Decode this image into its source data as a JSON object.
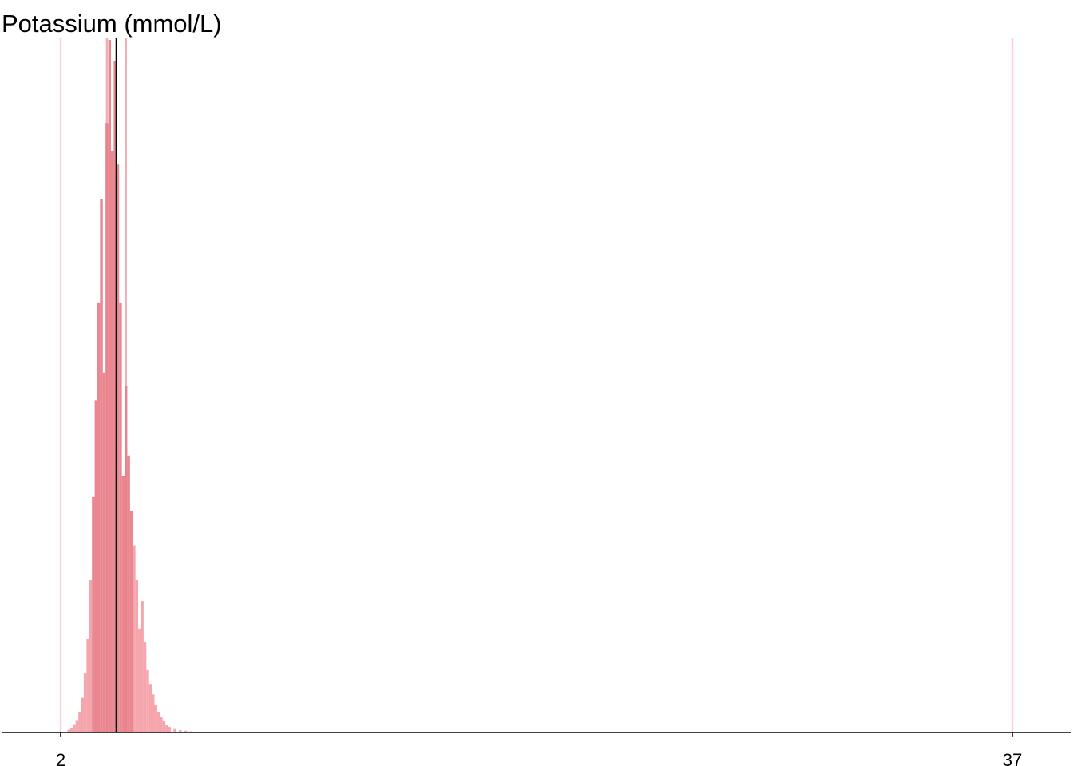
{
  "chart_data": {
    "type": "bar",
    "title": "Potassium (mmol/L)",
    "xlabel": "",
    "ylabel": "",
    "xlim": [
      2,
      37
    ],
    "xticks": [
      2,
      37
    ],
    "grid": false,
    "legend": "none",
    "bar_color": "#f4a0a8",
    "bar_color_dark": "#e8808a",
    "bins": {
      "x": [
        2.3,
        2.4,
        2.5,
        2.6,
        2.7,
        2.8,
        2.9,
        3.0,
        3.1,
        3.2,
        3.3,
        3.4,
        3.5,
        3.6,
        3.7,
        3.8,
        3.9,
        4.0,
        4.1,
        4.2,
        4.3,
        4.4,
        4.5,
        4.6,
        4.7,
        4.8,
        4.9,
        5.0,
        5.1,
        5.2,
        5.3,
        5.4,
        5.5,
        5.6,
        5.7,
        5.8,
        5.9,
        6.0,
        6.2,
        6.4,
        6.6,
        6.8,
        7.0,
        7.2
      ],
      "y": [
        0.4,
        0.7,
        1.2,
        1.8,
        3.0,
        5.0,
        8.5,
        13.5,
        22,
        34,
        48,
        62,
        77,
        52,
        88,
        100,
        84,
        97,
        82,
        62,
        37,
        50,
        40,
        32,
        27,
        22,
        15,
        19,
        13,
        9,
        7,
        5.5,
        4,
        3,
        2.2,
        1.6,
        1.1,
        0.8,
        0.5,
        0.35,
        0.25,
        0.15,
        0.1,
        0.05
      ]
    },
    "reference_lines": [
      {
        "x": 2.0,
        "color": "#ffc8d0",
        "style": "light"
      },
      {
        "x": 3.7,
        "color": "#f4a0a8",
        "style": "light"
      },
      {
        "x": 4.4,
        "color": "#f4a0a8",
        "style": "light"
      },
      {
        "x": 37.0,
        "color": "#ffc8d0",
        "style": "light"
      },
      {
        "x": 4.05,
        "color": "#000000",
        "style": "mean"
      }
    ]
  }
}
